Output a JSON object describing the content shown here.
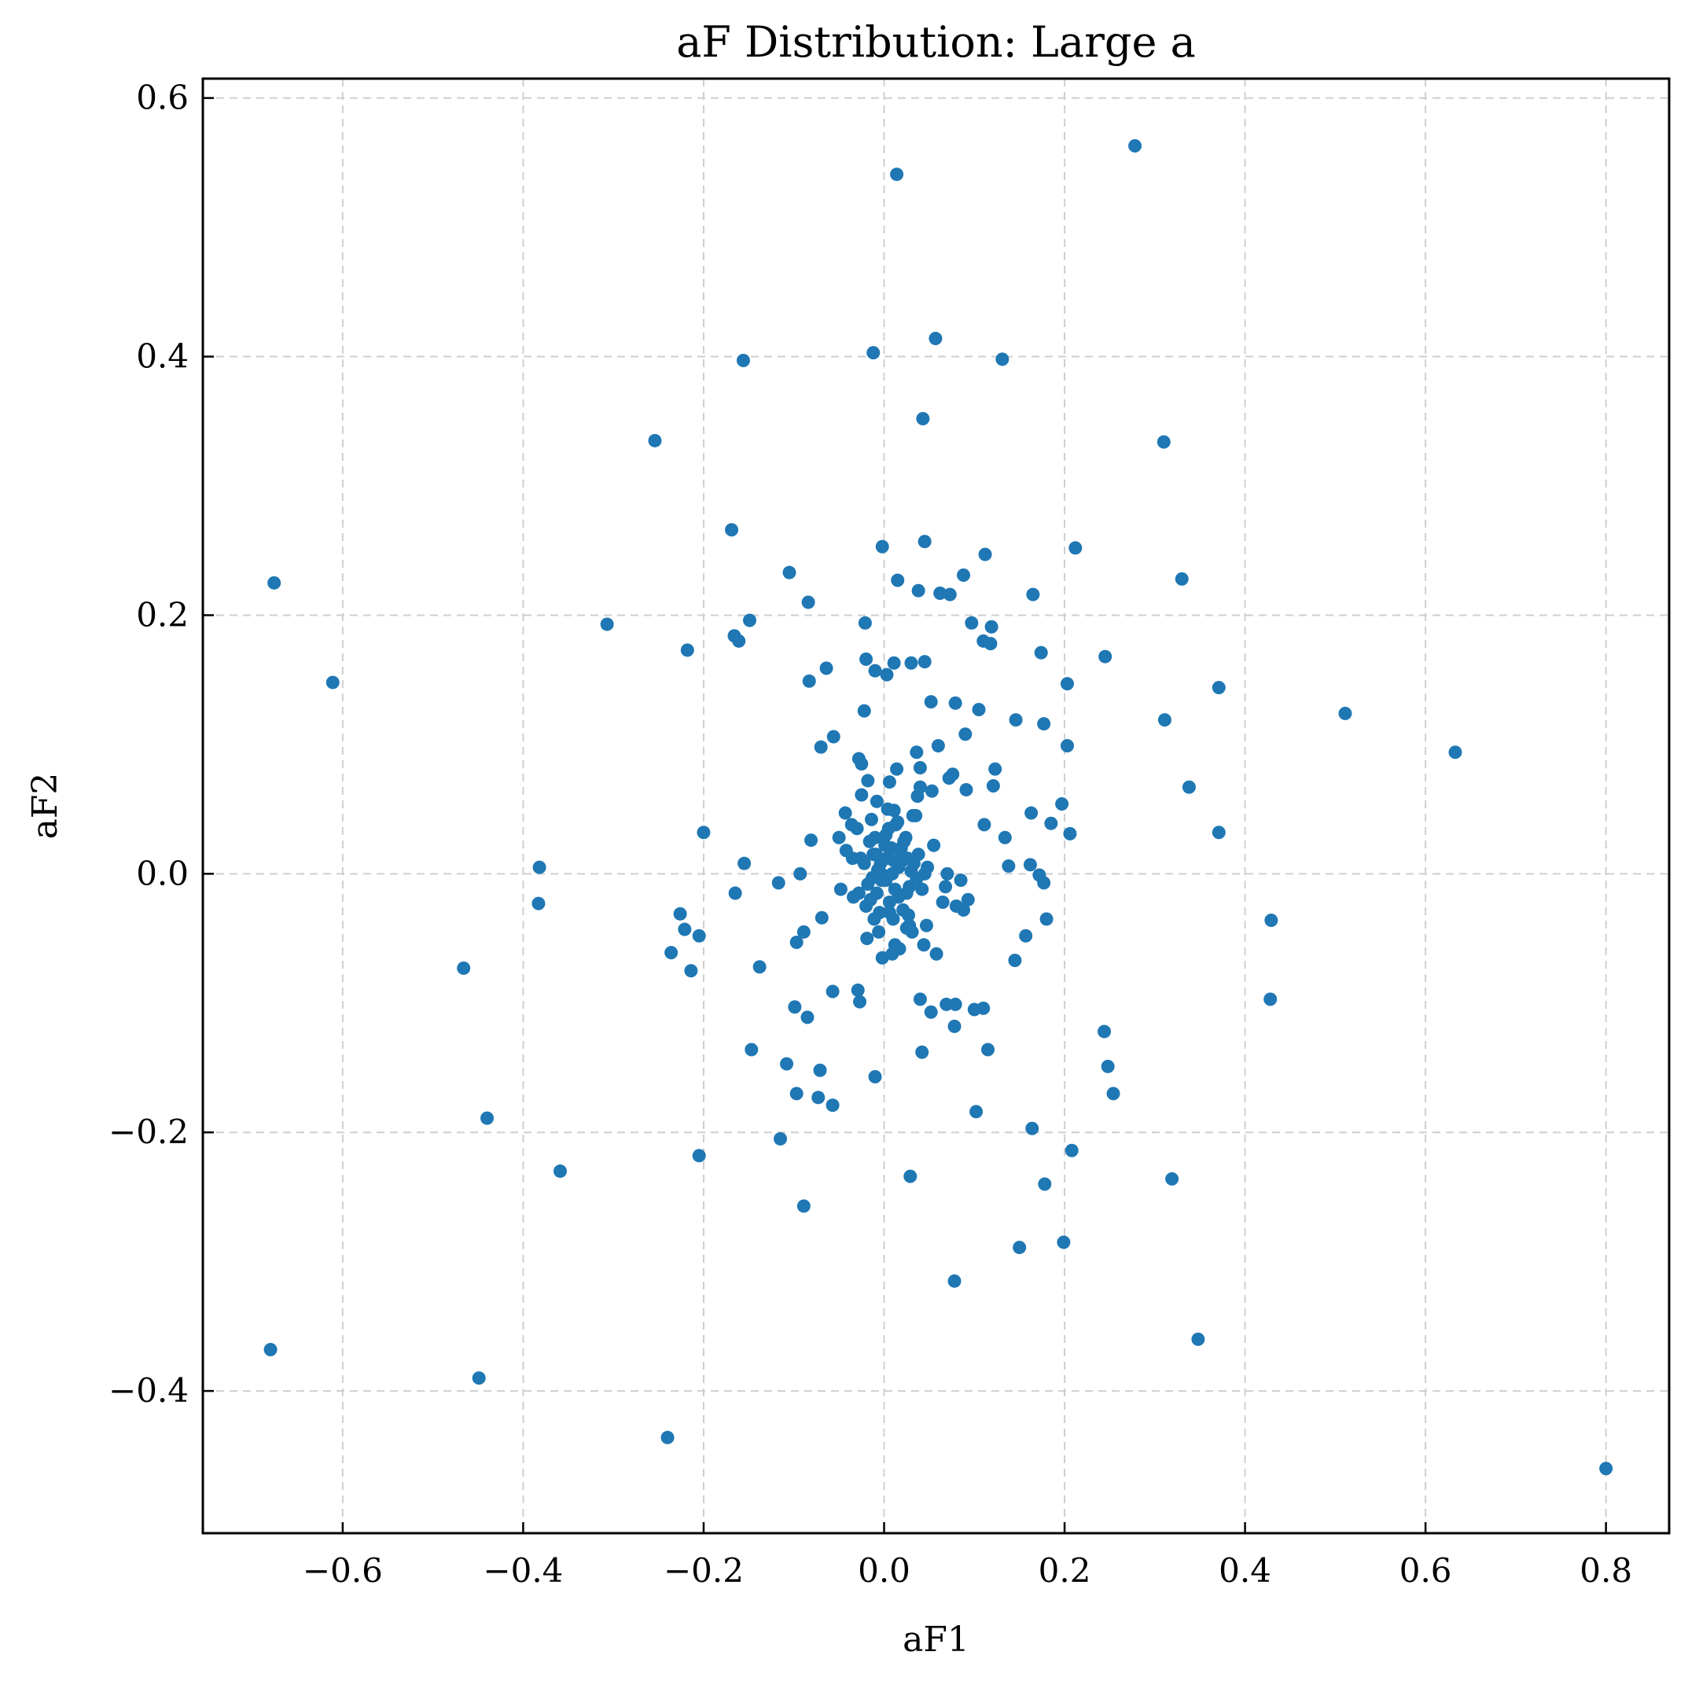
{
  "chart_data": {
    "type": "scatter",
    "title": "aF Distribution: Large a",
    "xlabel": "aF1",
    "ylabel": "aF2",
    "xlim": [
      -0.755,
      0.87
    ],
    "ylim": [
      -0.51,
      0.615
    ],
    "xticks": [
      -0.6,
      -0.4,
      -0.2,
      0.0,
      0.2,
      0.4,
      0.6,
      0.8
    ],
    "xtick_labels": [
      "−0.6",
      "−0.4",
      "−0.2",
      "0.0",
      "0.2",
      "0.4",
      "0.6",
      "0.8"
    ],
    "yticks": [
      -0.4,
      -0.2,
      0.0,
      0.2,
      0.4,
      0.6
    ],
    "ytick_labels": [
      "−0.4",
      "−0.2",
      "0.0",
      "0.2",
      "0.4",
      "0.6"
    ],
    "grid": true,
    "marker_color": "#1f77b4",
    "series": [
      {
        "x": [
          0.278,
          0.014,
          0.057,
          -0.012,
          0.131,
          -0.156,
          0.043,
          -0.254,
          0.31,
          -0.169,
          0.045,
          -0.002,
          0.112,
          0.212,
          -0.676,
          -0.105,
          0.015,
          0.038,
          0.062,
          0.073,
          0.088,
          0.33,
          -0.084,
          0.165,
          -0.307,
          -0.021,
          0.097,
          0.119,
          -0.149,
          -0.166,
          -0.161,
          -0.218,
          0.11,
          0.118,
          0.174,
          0.245,
          -0.611,
          -0.01,
          -0.064,
          0.011,
          0.03,
          0.045,
          0.003,
          -0.083,
          -0.02,
          0.371,
          0.203,
          0.052,
          0.079,
          -0.022,
          0.105,
          0.146,
          0.311,
          0.177,
          0.511,
          0.633,
          -0.056,
          0.09,
          0.06,
          0.203,
          -0.07,
          -0.028,
          0.036,
          -0.025,
          0.04,
          0.014,
          0.123,
          -0.018,
          0.072,
          0.076,
          0.006,
          0.121,
          0.338,
          0.091,
          -0.025,
          -0.008,
          0.04,
          0.197,
          -0.043,
          0.053,
          0.011,
          0.163,
          -0.036,
          0.185,
          0.111,
          -0.2,
          0.371,
          0.206,
          -0.081,
          0.134,
          -0.155,
          -0.382,
          0.138,
          0.162,
          0.172,
          -0.093,
          -0.117,
          -0.165,
          -0.383,
          0.177,
          -0.226,
          -0.205,
          -0.221,
          -0.236,
          0.429,
          0.18,
          -0.069,
          -0.089,
          0.157,
          -0.097,
          -0.466,
          -0.214,
          0.145,
          -0.138,
          -0.057,
          -0.029,
          -0.027,
          -0.099,
          0.11,
          0.079,
          0.069,
          0.1,
          0.04,
          0.428,
          -0.085,
          0.052,
          0.078,
          0.042,
          -0.147,
          0.115,
          0.244,
          -0.108,
          0.248,
          -0.071,
          -0.01,
          -0.097,
          0.254,
          -0.073,
          -0.057,
          0.102,
          -0.44,
          0.164,
          -0.115,
          0.208,
          -0.205,
          -0.359,
          0.029,
          0.319,
          0.178,
          -0.089,
          0.199,
          0.15,
          0.078,
          0.348,
          -0.68,
          -0.449,
          -0.24,
          0.8,
          0.003,
          -0.003,
          0.008,
          -0.007,
          0.012,
          -0.012,
          0.016,
          -0.015,
          0.02,
          -0.018,
          0.022,
          0.025,
          0.005,
          -0.005,
          0.018,
          -0.01,
          0.03,
          -0.02,
          0.01,
          -0.004,
          0.028,
          0.033,
          0.036,
          -0.026,
          -0.013,
          0.006,
          -0.009,
          0.015,
          0.021,
          -0.006,
          0.002,
          0.032,
          0.038,
          0.042,
          0.047,
          0.055,
          0.065,
          0.07,
          0.085,
          0.025,
          0.012,
          -0.03,
          -0.034,
          -0.042,
          -0.048,
          -0.05,
          0.009,
          0.019,
          0.027,
          -0.016,
          -0.022,
          0.08,
          0.088,
          0.093,
          0.068,
          0.048,
          0.035,
          0.028,
          0.004,
          -0.002,
          -0.011,
          -0.019,
          0.013,
          0.001,
          -0.008,
          0.017,
          0.024,
          0.031,
          0.044,
          0.058,
          -0.035,
          -0.028,
          0.009,
          0.002,
          -0.014,
          0.006,
          0.022,
          0.037,
          0.045,
          0.011,
          -0.003,
          0.016,
          0.026
        ],
        "y": [
          0.563,
          0.541,
          0.414,
          0.403,
          0.398,
          0.397,
          0.352,
          0.335,
          0.334,
          0.266,
          0.257,
          0.253,
          0.247,
          0.252,
          0.225,
          0.233,
          0.227,
          0.219,
          0.217,
          0.216,
          0.231,
          0.228,
          0.21,
          0.216,
          0.193,
          0.194,
          0.194,
          0.191,
          0.196,
          0.184,
          0.18,
          0.173,
          0.18,
          0.178,
          0.171,
          0.168,
          0.148,
          0.157,
          0.159,
          0.163,
          0.163,
          0.164,
          0.154,
          0.149,
          0.166,
          0.144,
          0.147,
          0.133,
          0.132,
          0.126,
          0.127,
          0.119,
          0.119,
          0.116,
          0.124,
          0.094,
          0.106,
          0.108,
          0.099,
          0.099,
          0.098,
          0.089,
          0.094,
          0.085,
          0.082,
          0.081,
          0.081,
          0.072,
          0.074,
          0.077,
          0.071,
          0.068,
          0.067,
          0.065,
          0.061,
          0.056,
          0.067,
          0.054,
          0.047,
          0.064,
          0.049,
          0.047,
          0.038,
          0.039,
          0.038,
          0.032,
          0.032,
          0.031,
          0.026,
          0.028,
          0.008,
          0.005,
          0.006,
          0.007,
          -0.001,
          0.0,
          -0.007,
          -0.015,
          -0.023,
          -0.007,
          -0.031,
          -0.048,
          -0.043,
          -0.061,
          -0.036,
          -0.035,
          -0.034,
          -0.045,
          -0.048,
          -0.053,
          -0.073,
          -0.075,
          -0.067,
          -0.072,
          -0.091,
          -0.09,
          -0.099,
          -0.103,
          -0.104,
          -0.101,
          -0.101,
          -0.105,
          -0.097,
          -0.097,
          -0.111,
          -0.107,
          -0.118,
          -0.138,
          -0.136,
          -0.136,
          -0.122,
          -0.147,
          -0.149,
          -0.152,
          -0.157,
          -0.17,
          -0.17,
          -0.173,
          -0.179,
          -0.184,
          -0.189,
          -0.197,
          -0.205,
          -0.214,
          -0.218,
          -0.23,
          -0.234,
          -0.236,
          -0.24,
          -0.257,
          -0.285,
          -0.289,
          -0.315,
          -0.36,
          -0.368,
          -0.39,
          -0.436,
          -0.46,
          0.012,
          -0.005,
          0.02,
          0.003,
          -0.012,
          0.015,
          0.005,
          -0.02,
          0.01,
          -0.008,
          0.025,
          -0.015,
          0.035,
          -0.03,
          0.018,
          0.028,
          0.002,
          -0.025,
          -0.035,
          0.008,
          -0.01,
          0.008,
          -0.004,
          0.012,
          -0.003,
          -0.022,
          0.015,
          0.04,
          -0.028,
          -0.045,
          0.03,
          0.045,
          0.015,
          -0.012,
          -0.04,
          0.022,
          -0.022,
          0.0,
          -0.005,
          -0.042,
          -0.055,
          0.035,
          -0.018,
          0.018,
          -0.012,
          0.028,
          -0.062,
          0.02,
          -0.032,
          0.025,
          0.008,
          -0.025,
          -0.028,
          -0.02,
          -0.01,
          0.005,
          0.045,
          -0.04,
          0.05,
          -0.065,
          -0.035,
          -0.05,
          0.038,
          0.022,
          -0.015,
          -0.058,
          0.028,
          -0.045,
          -0.055,
          -0.062,
          0.012,
          -0.015,
          0.0,
          -0.005,
          0.042,
          -0.03,
          0.025,
          0.06,
          0.0,
          0.01,
          0.0,
          -0.018,
          0.012
        ]
      }
    ]
  }
}
